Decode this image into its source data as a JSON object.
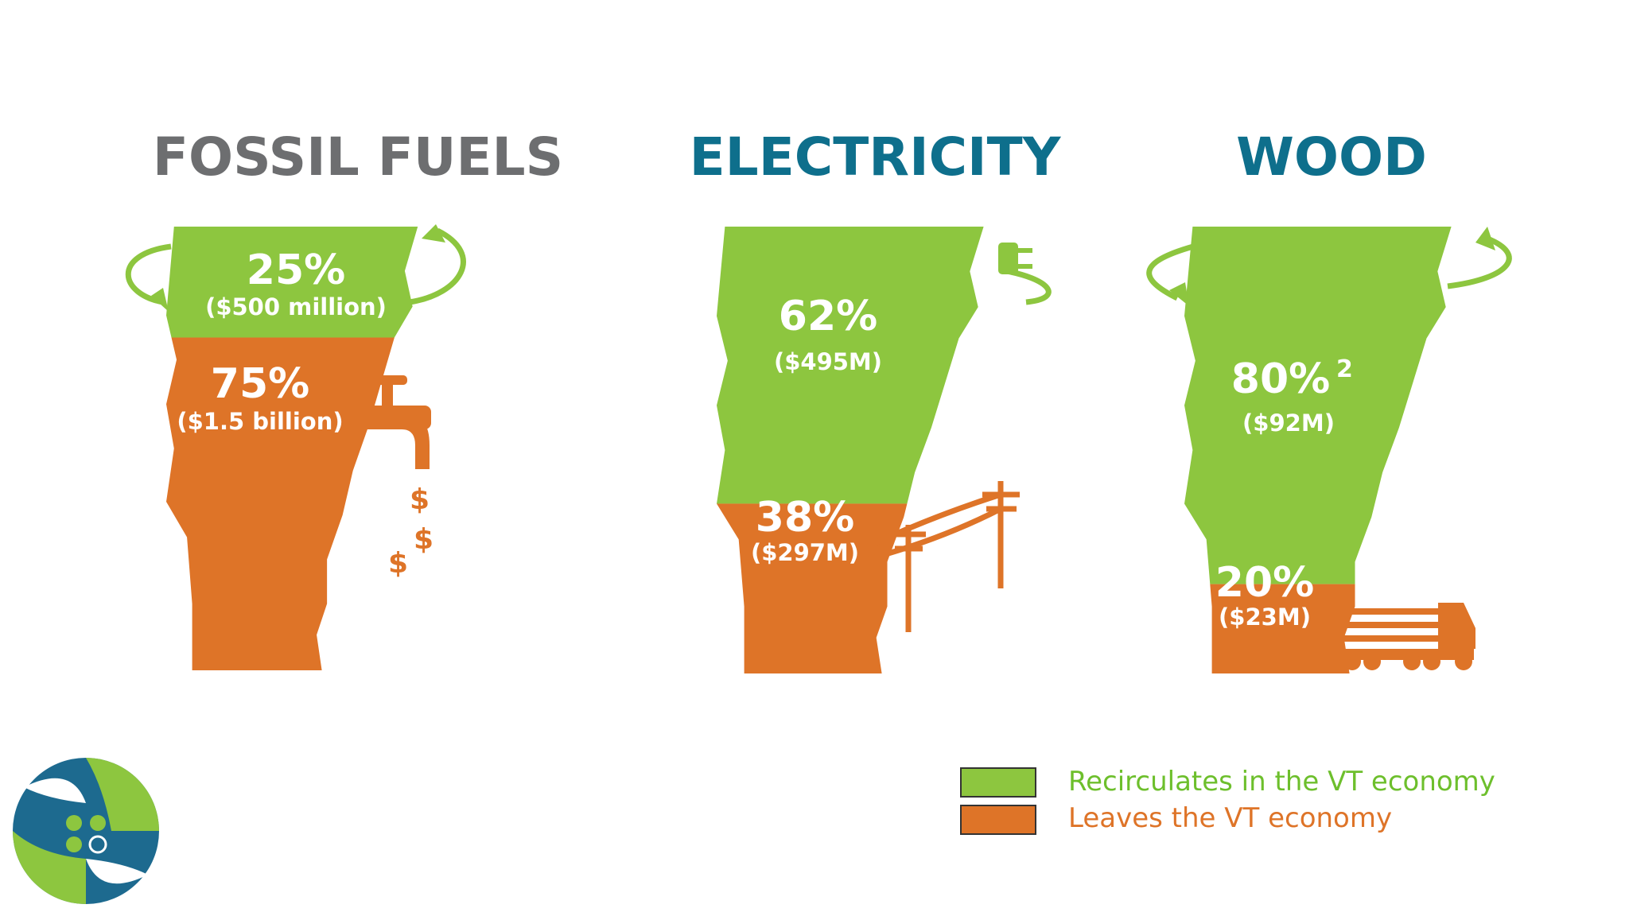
{
  "panels": [
    {
      "title": "FOSSIL FUELS",
      "stays": {
        "percent": "25%",
        "amount": "($500 million)"
      },
      "leaves": {
        "percent": "75%",
        "amount": "($1.5 billion)"
      }
    },
    {
      "title": "ELECTRICITY",
      "stays": {
        "percent": "62%",
        "amount": "($495M)"
      },
      "leaves": {
        "percent": "38%",
        "amount": "($297M)"
      }
    },
    {
      "title": "WOOD",
      "stays": {
        "percent": "80%",
        "footnote": "2",
        "amount": "($92M)"
      },
      "leaves": {
        "percent": "20%",
        "amount": "($23M)"
      }
    }
  ],
  "legend": [
    {
      "label": "Recirculates in the VT economy",
      "color": "#8dc63f"
    },
    {
      "label": "Leaves the VT economy",
      "color": "#de7428"
    }
  ]
}
